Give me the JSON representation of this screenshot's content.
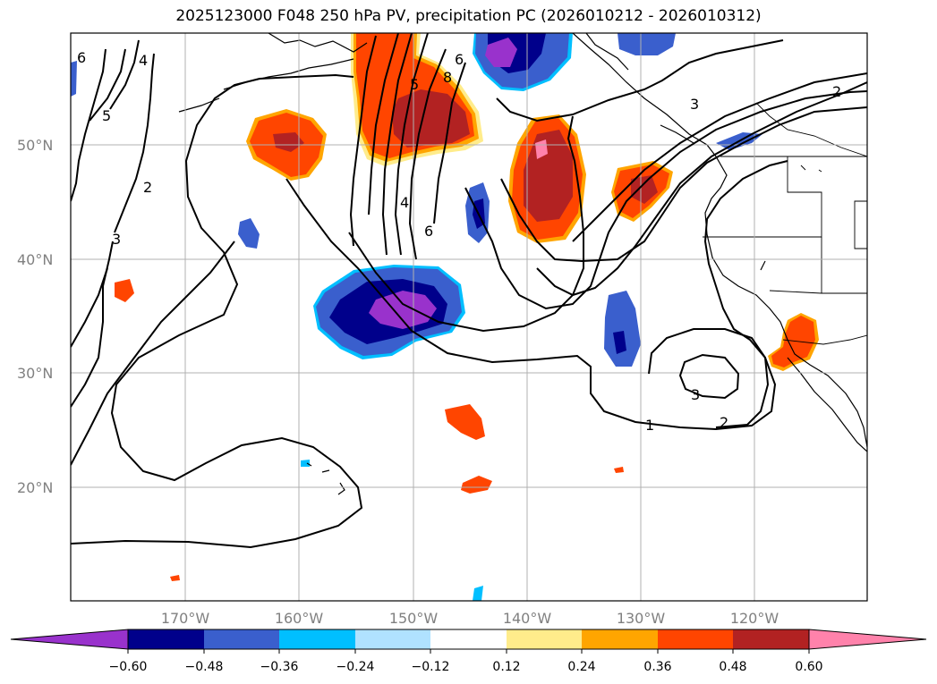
{
  "title": "2025123000 F048 250 hPa PV, precipitation PC (2026010212 - 2026010312)",
  "map": {
    "latitudes": [
      "50°N",
      "40°N",
      "30°N",
      "20°N"
    ],
    "longitudes": [
      "170°W",
      "160°W",
      "150°W",
      "140°W",
      "130°W",
      "120°W"
    ],
    "contour_labels": [
      "6",
      "5",
      "4",
      "3",
      "2",
      "6",
      "5",
      "8",
      "4",
      "6",
      "3",
      "2",
      "3",
      "1",
      "2"
    ],
    "grid": true
  },
  "colorbar": {
    "ticks": [
      "−0.60",
      "−0.48",
      "−0.36",
      "−0.24",
      "−0.12",
      "0.12",
      "0.24",
      "0.36",
      "0.48",
      "0.60"
    ],
    "colors": [
      "#9932cc",
      "#00008b",
      "#3a5fcd",
      "#00bfff",
      "#b0e2ff",
      "#ffffff",
      "#ffec8b",
      "#ffa500",
      "#ff4500",
      "#b22222",
      "#ff82ab"
    ]
  }
}
